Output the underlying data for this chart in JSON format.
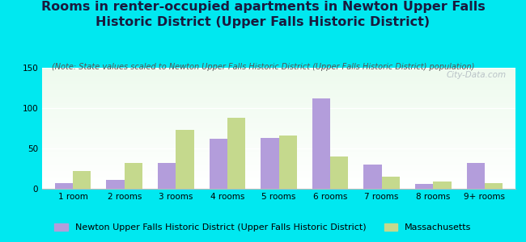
{
  "title": "Rooms in renter-occupied apartments in Newton Upper Falls\nHistoric District (Upper Falls Historic District)",
  "subtitle": "(Note: State values scaled to Newton Upper Falls Historic District (Upper Falls Historic District) population)",
  "categories": [
    "1 room",
    "2 rooms",
    "3 rooms",
    "4 rooms",
    "5 rooms",
    "6 rooms",
    "7 rooms",
    "8 rooms",
    "9+ rooms"
  ],
  "newton_values": [
    7,
    11,
    32,
    62,
    63,
    112,
    30,
    6,
    32
  ],
  "mass_values": [
    22,
    32,
    73,
    88,
    66,
    40,
    15,
    9,
    7
  ],
  "newton_color": "#b39ddb",
  "mass_color": "#c5d98d",
  "bg_outer": "#00e8f0",
  "bg_chart": "#e8f5e8",
  "ylim": [
    0,
    150
  ],
  "yticks": [
    0,
    50,
    100,
    150
  ],
  "title_fontsize": 11.5,
  "subtitle_fontsize": 7,
  "tick_fontsize": 7.5,
  "legend_fontsize": 8,
  "newton_label": "Newton Upper Falls Historic District (Upper Falls Historic District)",
  "mass_label": "Massachusetts",
  "watermark": "City-Data.com",
  "title_color": "#1a1a3e"
}
